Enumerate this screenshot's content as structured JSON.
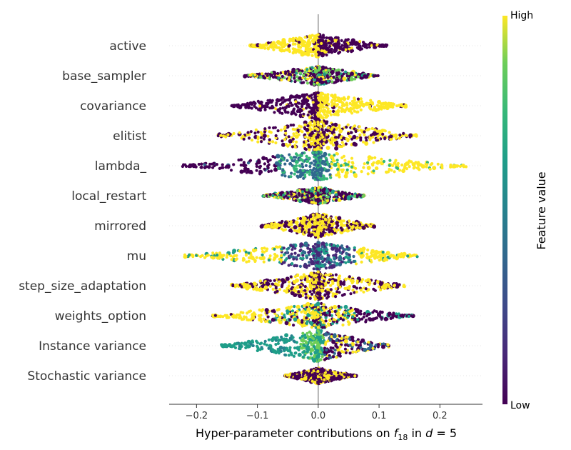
{
  "chart_data": {
    "type": "beeswarm",
    "xlabel_pre": "Hyper-parameter contributions on ",
    "xlabel_f": "f",
    "xlabel_sub": "18",
    "xlabel_mid": " in ",
    "xlabel_d": "d",
    "xlabel_eq": " = 5",
    "xlim": [
      -0.245,
      0.27
    ],
    "xticks": [
      -0.2,
      -0.1,
      0.0,
      0.1,
      0.2
    ],
    "xtick_labels": [
      "−0.2",
      "−0.1",
      "0.0",
      "0.1",
      "0.2"
    ],
    "colorbar": {
      "title": "Feature value",
      "high_label": "High",
      "low_label": "Low",
      "colormap": "viridis"
    },
    "features": [
      {
        "name": "active",
        "min": -0.113,
        "max": 0.113,
        "width": 16,
        "skew": 0.0,
        "mode": "binary_neg_high"
      },
      {
        "name": "base_sampler",
        "min": -0.121,
        "max": 0.099,
        "width": 13,
        "skew": 0.0,
        "mode": "multi"
      },
      {
        "name": "covariance",
        "min": -0.145,
        "max": 0.145,
        "width": 19,
        "skew": 0.0,
        "mode": "binary_neg_low"
      },
      {
        "name": "elitist",
        "min": -0.165,
        "max": 0.163,
        "width": 22,
        "skew": 0.0,
        "mode": "mixed_binary"
      },
      {
        "name": "lambda_",
        "min": -0.223,
        "max": 0.245,
        "width": 20,
        "skew": 0.0,
        "mode": "lambda"
      },
      {
        "name": "local_restart",
        "min": -0.091,
        "max": 0.078,
        "width": 12,
        "skew": 0.0,
        "mode": "multi"
      },
      {
        "name": "mirrored",
        "min": -0.093,
        "max": 0.092,
        "width": 17,
        "skew": 0.0,
        "mode": "mixed_binary"
      },
      {
        "name": "mu",
        "min": -0.22,
        "max": 0.163,
        "width": 19,
        "skew": 0.0,
        "mode": "mu"
      },
      {
        "name": "step_size_adaptation",
        "min": -0.143,
        "max": 0.144,
        "width": 20,
        "skew": 0.0,
        "mode": "mixed_binary"
      },
      {
        "name": "weights_option",
        "min": -0.177,
        "max": 0.157,
        "width": 18,
        "skew": 0.0,
        "mode": "weights"
      },
      {
        "name": "Instance variance",
        "min": -0.16,
        "max": 0.117,
        "width": 22,
        "skew": 0.0,
        "mode": "instance"
      },
      {
        "name": "Stochastic variance",
        "min": -0.055,
        "max": 0.063,
        "width": 11,
        "skew": 0.0,
        "mode": "stochastic"
      }
    ]
  }
}
